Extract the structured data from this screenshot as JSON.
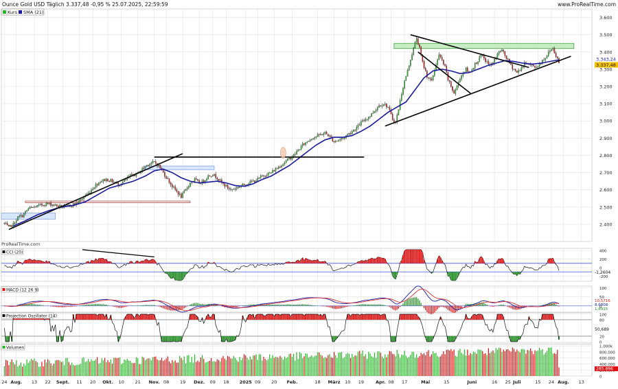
{
  "header": {
    "title": "Ounce Gold USD Täglich 3.337,48 -0,95 % 25.07.2025, 22:59:59",
    "site": "www.ProRealTime.com",
    "watermark": "ProRealTime.com"
  },
  "colors": {
    "up": "#22bb22",
    "down": "#dd1111",
    "sma": "#1a1aa0",
    "grid": "#e2e2e2",
    "price_tag": "#f5c400",
    "osc_fill_pos": "#dd1111",
    "osc_fill_neg": "#1f8a1f",
    "level_line": "#4455ee"
  },
  "chart_data": [
    {
      "type": "candlestick",
      "panel": "price",
      "title": "Ounce Gold USD Täglich",
      "legend": [
        {
          "name": "Kurs",
          "color": "#22bb22"
        },
        {
          "name": "SMA (21)",
          "color": "#1a1aa0"
        }
      ],
      "ylim": [
        2300,
        3650
      ],
      "y_ticks": [
        "3.600",
        "3.500",
        "3.400",
        "3.300",
        "3.200",
        "3.100",
        "3.000",
        "2.900",
        "2.800",
        "2.700",
        "2.600",
        "2.500",
        "2.400"
      ],
      "y_tick_values": [
        3600,
        3500,
        3400,
        3300,
        3200,
        3100,
        3000,
        2900,
        2800,
        2700,
        2600,
        2500,
        2400
      ],
      "price_labels": [
        {
          "text": "3.343,24",
          "value": 3343.24
        },
        {
          "text": "3.337,48",
          "value": 3337.48
        }
      ],
      "x_ticks": [
        {
          "label": "24",
          "day": 0
        },
        {
          "label": "Aug.",
          "day": 8,
          "bold": true
        },
        {
          "label": "13",
          "day": 20
        },
        {
          "label": "22",
          "day": 29
        },
        {
          "label": "Sept.",
          "day": 39,
          "bold": true
        },
        {
          "label": "11",
          "day": 50
        },
        {
          "label": "20",
          "day": 59
        },
        {
          "label": "Okt.",
          "day": 69,
          "bold": true
        },
        {
          "label": "10",
          "day": 78
        },
        {
          "label": "21",
          "day": 89
        },
        {
          "label": "Nov.",
          "day": 100,
          "bold": true
        },
        {
          "label": "08",
          "day": 108
        },
        {
          "label": "19",
          "day": 119
        },
        {
          "label": "Dez.",
          "day": 130,
          "bold": true
        },
        {
          "label": "09",
          "day": 139
        },
        {
          "label": "18",
          "day": 148
        },
        {
          "label": "2025",
          "day": 161,
          "bold": true
        },
        {
          "label": "09",
          "day": 169
        },
        {
          "label": "20",
          "day": 180
        },
        {
          "label": "Feb.",
          "day": 192,
          "bold": true
        },
        {
          "label": "18",
          "day": 209
        },
        {
          "label": "März",
          "day": 220,
          "bold": true
        },
        {
          "label": "10",
          "day": 229
        },
        {
          "label": "19",
          "day": 238
        },
        {
          "label": "Apr.",
          "day": 251,
          "bold": true
        },
        {
          "label": "08",
          "day": 258
        },
        {
          "label": "17",
          "day": 267
        },
        {
          "label": "Mai",
          "day": 281,
          "bold": true
        },
        {
          "label": "15",
          "day": 295
        },
        {
          "label": "Juni",
          "day": 312,
          "bold": true
        },
        {
          "label": "16",
          "day": 327
        },
        {
          "label": "25",
          "day": 336
        },
        {
          "label": "Juli",
          "day": 342,
          "bold": true
        },
        {
          "label": "15",
          "day": 356
        },
        {
          "label": "24",
          "day": 365
        },
        {
          "label": "Aug.",
          "day": 373,
          "bold": true
        },
        {
          "label": "13",
          "day": 385
        }
      ],
      "x_range_days": [
        -2,
        392
      ],
      "close_anchors": [
        [
          0,
          2405
        ],
        [
          3,
          2380
        ],
        [
          6,
          2400
        ],
        [
          9,
          2440
        ],
        [
          12,
          2450
        ],
        [
          16,
          2490
        ],
        [
          20,
          2500
        ],
        [
          24,
          2510
        ],
        [
          28,
          2520
        ],
        [
          32,
          2515
        ],
        [
          36,
          2505
        ],
        [
          40,
          2500
        ],
        [
          44,
          2510
        ],
        [
          48,
          2520
        ],
        [
          52,
          2550
        ],
        [
          56,
          2580
        ],
        [
          60,
          2620
        ],
        [
          64,
          2650
        ],
        [
          68,
          2660
        ],
        [
          72,
          2650
        ],
        [
          76,
          2630
        ],
        [
          80,
          2650
        ],
        [
          84,
          2680
        ],
        [
          88,
          2690
        ],
        [
          92,
          2720
        ],
        [
          96,
          2750
        ],
        [
          100,
          2760
        ],
        [
          103,
          2740
        ],
        [
          106,
          2700
        ],
        [
          109,
          2660
        ],
        [
          112,
          2620
        ],
        [
          115,
          2590
        ],
        [
          118,
          2560
        ],
        [
          121,
          2600
        ],
        [
          124,
          2640
        ],
        [
          127,
          2660
        ],
        [
          130,
          2640
        ],
        [
          133,
          2650
        ],
        [
          136,
          2680
        ],
        [
          139,
          2690
        ],
        [
          142,
          2670
        ],
        [
          145,
          2640
        ],
        [
          148,
          2620
        ],
        [
          151,
          2600
        ],
        [
          154,
          2610
        ],
        [
          157,
          2620
        ],
        [
          160,
          2630
        ],
        [
          163,
          2640
        ],
        [
          166,
          2650
        ],
        [
          169,
          2660
        ],
        [
          172,
          2680
        ],
        [
          175,
          2690
        ],
        [
          178,
          2700
        ],
        [
          181,
          2720
        ],
        [
          184,
          2740
        ],
        [
          187,
          2760
        ],
        [
          190,
          2780
        ],
        [
          193,
          2800
        ],
        [
          196,
          2830
        ],
        [
          199,
          2860
        ],
        [
          202,
          2880
        ],
        [
          205,
          2900
        ],
        [
          208,
          2910
        ],
        [
          211,
          2920
        ],
        [
          214,
          2930
        ],
        [
          217,
          2910
        ],
        [
          220,
          2880
        ],
        [
          223,
          2890
        ],
        [
          226,
          2900
        ],
        [
          229,
          2920
        ],
        [
          232,
          2940
        ],
        [
          235,
          2960
        ],
        [
          238,
          2990
        ],
        [
          241,
          3010
        ],
        [
          244,
          3030
        ],
        [
          247,
          3060
        ],
        [
          250,
          3090
        ],
        [
          253,
          3100
        ],
        [
          256,
          3080
        ],
        [
          259,
          3010
        ],
        [
          261,
          2990
        ],
        [
          263,
          3070
        ],
        [
          265,
          3160
        ],
        [
          267,
          3230
        ],
        [
          269,
          3290
        ],
        [
          271,
          3360
        ],
        [
          273,
          3420
        ],
        [
          275,
          3480
        ],
        [
          277,
          3420
        ],
        [
          279,
          3340
        ],
        [
          282,
          3260
        ],
        [
          285,
          3230
        ],
        [
          288,
          3330
        ],
        [
          290,
          3380
        ],
        [
          292,
          3350
        ],
        [
          294,
          3310
        ],
        [
          296,
          3240
        ],
        [
          298,
          3200
        ],
        [
          300,
          3160
        ],
        [
          302,
          3200
        ],
        [
          304,
          3250
        ],
        [
          306,
          3280
        ],
        [
          308,
          3300
        ],
        [
          310,
          3280
        ],
        [
          312,
          3300
        ],
        [
          314,
          3330
        ],
        [
          316,
          3350
        ],
        [
          318,
          3380
        ],
        [
          320,
          3360
        ],
        [
          322,
          3340
        ],
        [
          324,
          3320
        ],
        [
          326,
          3340
        ],
        [
          328,
          3370
        ],
        [
          330,
          3400
        ],
        [
          332,
          3410
        ],
        [
          334,
          3380
        ],
        [
          336,
          3350
        ],
        [
          338,
          3320
        ],
        [
          340,
          3300
        ],
        [
          342,
          3280
        ],
        [
          344,
          3300
        ],
        [
          346,
          3320
        ],
        [
          348,
          3340
        ],
        [
          350,
          3330
        ],
        [
          352,
          3320
        ],
        [
          354,
          3310
        ],
        [
          356,
          3320
        ],
        [
          358,
          3340
        ],
        [
          360,
          3360
        ],
        [
          362,
          3380
        ],
        [
          364,
          3410
        ],
        [
          366,
          3420
        ],
        [
          368,
          3380
        ],
        [
          370,
          3337
        ]
      ],
      "sma_anchors": [
        [
          6,
          2390
        ],
        [
          14,
          2420
        ],
        [
          22,
          2455
        ],
        [
          30,
          2480
        ],
        [
          38,
          2500
        ],
        [
          46,
          2510
        ],
        [
          54,
          2530
        ],
        [
          62,
          2570
        ],
        [
          70,
          2610
        ],
        [
          78,
          2630
        ],
        [
          86,
          2650
        ],
        [
          94,
          2680
        ],
        [
          100,
          2710
        ],
        [
          106,
          2720
        ],
        [
          112,
          2700
        ],
        [
          118,
          2670
        ],
        [
          124,
          2650
        ],
        [
          130,
          2640
        ],
        [
          136,
          2645
        ],
        [
          142,
          2650
        ],
        [
          148,
          2640
        ],
        [
          154,
          2625
        ],
        [
          160,
          2620
        ],
        [
          166,
          2635
        ],
        [
          172,
          2660
        ],
        [
          178,
          2680
        ],
        [
          184,
          2710
        ],
        [
          190,
          2740
        ],
        [
          196,
          2780
        ],
        [
          202,
          2820
        ],
        [
          208,
          2860
        ],
        [
          214,
          2890
        ],
        [
          220,
          2905
        ],
        [
          226,
          2905
        ],
        [
          232,
          2915
        ],
        [
          238,
          2940
        ],
        [
          244,
          2970
        ],
        [
          250,
          3010
        ],
        [
          256,
          3050
        ],
        [
          262,
          3080
        ],
        [
          268,
          3110
        ],
        [
          274,
          3180
        ],
        [
          280,
          3250
        ],
        [
          286,
          3290
        ],
        [
          292,
          3300
        ],
        [
          298,
          3290
        ],
        [
          304,
          3275
        ],
        [
          310,
          3280
        ],
        [
          316,
          3300
        ],
        [
          322,
          3320
        ],
        [
          328,
          3335
        ],
        [
          334,
          3350
        ],
        [
          340,
          3345
        ],
        [
          346,
          3335
        ],
        [
          352,
          3330
        ],
        [
          358,
          3335
        ],
        [
          364,
          3345
        ],
        [
          370,
          3355
        ]
      ],
      "trend_lines": [
        {
          "from": [
            3,
            2370
          ],
          "to": [
            119,
            2810
          ]
        },
        {
          "from": [
            100,
            2790
          ],
          "to": [
            240,
            2790
          ]
        },
        {
          "from": [
            271,
            3500
          ],
          "to": [
            350,
            3310
          ]
        },
        {
          "from": [
            276,
            3400
          ],
          "to": [
            311,
            3160
          ]
        },
        {
          "from": [
            254,
            2970
          ],
          "to": [
            378,
            3375
          ]
        }
      ],
      "zones": [
        {
          "x": [
            260,
            380
          ],
          "y": [
            3420,
            3450
          ],
          "fill": "#c8ecc4",
          "stroke": "#2a9a2a"
        },
        {
          "x": [
            -2,
            34
          ],
          "y": [
            2430,
            2465
          ],
          "fill": "#d8e6ff",
          "stroke": "#7799dd"
        },
        {
          "x": [
            93,
            140
          ],
          "y": [
            2717,
            2738
          ],
          "fill": "#d8e6ff",
          "stroke": "#7799dd"
        },
        {
          "x": [
            14,
            124
          ],
          "y": [
            2525,
            2535
          ],
          "fill": "#fbe3e3",
          "stroke": "#aa4444"
        }
      ]
    },
    {
      "type": "area",
      "panel": "cci",
      "title": "CCI (20)",
      "ylim": [
        -320,
        450
      ],
      "y_ticks": [
        "400",
        "200",
        "0",
        "-200"
      ],
      "y_tick_values": [
        400,
        200,
        0,
        -200
      ],
      "levels": [
        100,
        -100
      ],
      "last_label": "-1,2604"
    },
    {
      "type": "line",
      "panel": "macd",
      "title": "MACD (12 26 9)",
      "ylim": [
        -35,
        110
      ],
      "y_ticks": [
        "100",
        "50",
        "0"
      ],
      "y_tick_values": [
        100,
        50,
        0
      ],
      "last_labels": [
        "10,5716",
        "8,6808",
        "1,8915"
      ]
    },
    {
      "type": "area",
      "panel": "projection",
      "title": "Projection Oszillator (14)",
      "ylim": [
        -5,
        105
      ],
      "y_ticks": [
        "100",
        "80",
        "20",
        "0"
      ],
      "y_tick_values": [
        100,
        80,
        20,
        0
      ],
      "levels": [
        80,
        20
      ],
      "last_label": "50,689"
    },
    {
      "type": "bar",
      "panel": "volume",
      "title": "Volumen",
      "ylim": [
        0,
        1050000
      ],
      "y_ticks": [
        "1.000k",
        "800.000",
        "600.000",
        "400.000",
        "200.000",
        "0"
      ],
      "y_tick_values": [
        1000000,
        800000,
        600000,
        400000,
        200000,
        0
      ],
      "last_label": "285.896",
      "last_value": 285896
    }
  ]
}
